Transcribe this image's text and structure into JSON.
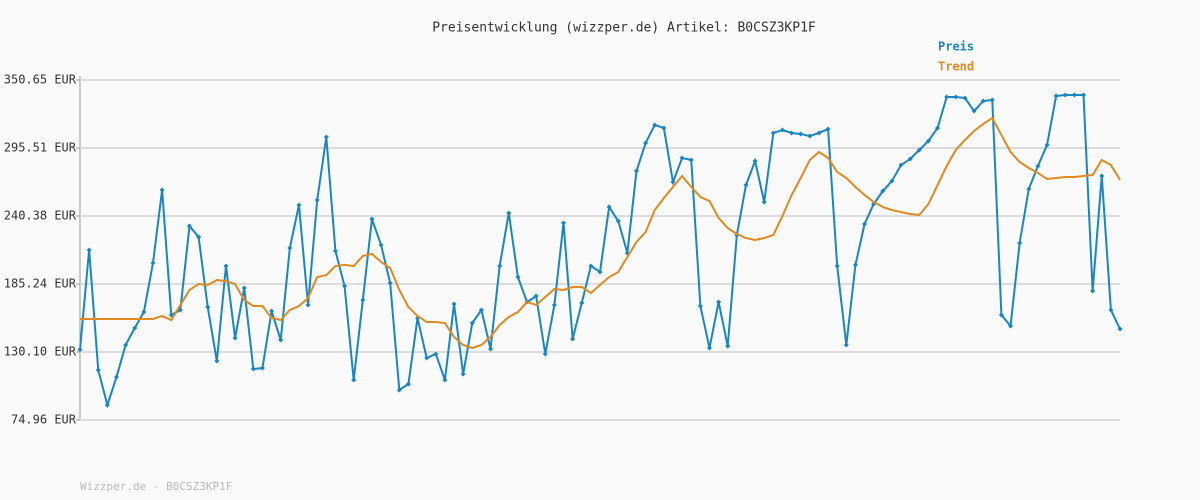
{
  "chart_data": {
    "type": "line",
    "title": "Preisentwicklung (wizzper.de) Artikel: B0CSZ3KP1F",
    "footer": "Wizzper.de - B0CSZ3KP1F",
    "categories": [
      null,
      null,
      null,
      null,
      null,
      null,
      null,
      null,
      null,
      null,
      null,
      null,
      null,
      null,
      null,
      null,
      null,
      null,
      null,
      null,
      null,
      null,
      null,
      null,
      null,
      null,
      null,
      null,
      null,
      null,
      null,
      null,
      null,
      null,
      null,
      null,
      null,
      null,
      null,
      null,
      null,
      null,
      null,
      null,
      null,
      null,
      null,
      null,
      null,
      null,
      null,
      null,
      null,
      null,
      null,
      null,
      null,
      null,
      null,
      null,
      null,
      null,
      null,
      null,
      null,
      null,
      null,
      null,
      null,
      null,
      null,
      null,
      null,
      null,
      null,
      null,
      null,
      null,
      null,
      null,
      null,
      null,
      null,
      null,
      null,
      null,
      null,
      null,
      null,
      null,
      null,
      null,
      null,
      null,
      null,
      null,
      null,
      null,
      null,
      null,
      null,
      null,
      null,
      null,
      null,
      null,
      null,
      null,
      null,
      null,
      null,
      null,
      null,
      null,
      null
    ],
    "ylim": [
      74.96,
      350.65
    ],
    "yticks": [
      {
        "value": 74.96,
        "label": "74.96 EUR"
      },
      {
        "value": 130.1,
        "label": "130.10 EUR"
      },
      {
        "value": 185.24,
        "label": "185.24 EUR"
      },
      {
        "value": 240.38,
        "label": "240.38 EUR"
      },
      {
        "value": 295.51,
        "label": "295.51 EUR"
      },
      {
        "value": 350.65,
        "label": "350.65 EUR"
      }
    ],
    "grid": true,
    "series": [
      {
        "name": "Preis",
        "color": "#1a86c0",
        "markers": true,
        "values": [
          132,
          212.8,
          115.5,
          87.1,
          109.8,
          135.8,
          149.6,
          162.5,
          202.3,
          261.5,
          160.1,
          164.2,
          232.3,
          223.3,
          166.6,
          122.8,
          199.8,
          141.4,
          182.0,
          116.3,
          117.1,
          163.3,
          139.8,
          214.4,
          249.3,
          168.2,
          253.3,
          304.4,
          212.0,
          183.6,
          107.4,
          172.2,
          237.9,
          216.9,
          186.0,
          99.3,
          104.2,
          157.7,
          125.2,
          128.5,
          107.4,
          169.0,
          112.3,
          153.6,
          164.2,
          132.5,
          199.8,
          242.8,
          190.9,
          170.6,
          175.5,
          128.5,
          168.2,
          234.7,
          140.6,
          169.8,
          199.8,
          195.0,
          247.7,
          236.3,
          210.4,
          276.9,
          299.6,
          314.2,
          311.7,
          267.9,
          287.4,
          285.8,
          167.4,
          133.3,
          170.6,
          134.9,
          224.9,
          265.5,
          285.0,
          251.7,
          307.7,
          310.1,
          307.7,
          306.9,
          305.2,
          307.7,
          310.9,
          199.8,
          135.8,
          200.7,
          233.9,
          250.1,
          260.6,
          268.8,
          281.7,
          286.6,
          293.9,
          301.2,
          311.7,
          336.9,
          336.9,
          336.1,
          325.5,
          333.6,
          334.4,
          160.1,
          151.2,
          218.5,
          262.3,
          280.9,
          297.9,
          337.7,
          338.5,
          338.5,
          338.5,
          179.6,
          272.8,
          164.2,
          148.7
        ]
      },
      {
        "name": "Trend",
        "color": "#e08a20",
        "markers": false,
        "values": [
          156.9,
          156.9,
          156.9,
          156.9,
          156.9,
          156.9,
          156.9,
          156.9,
          156.9,
          159.3,
          156.0,
          168.2,
          180.4,
          185.2,
          184.4,
          188.5,
          187.6,
          185.2,
          172.2,
          167.4,
          167.4,
          157.7,
          156.0,
          164.2,
          167.4,
          173.9,
          190.9,
          192.5,
          199.8,
          200.7,
          199.8,
          207.9,
          209.6,
          203.1,
          198.2,
          180.4,
          166.6,
          159.3,
          154.4,
          154.4,
          153.6,
          142.3,
          135.8,
          133.3,
          135.8,
          142.3,
          152.0,
          158.5,
          162.5,
          170.6,
          168.2,
          174.7,
          181.2,
          180.4,
          182.8,
          182.8,
          177.9,
          184.4,
          190.9,
          195.0,
          207.1,
          219.3,
          227.4,
          245.2,
          255.0,
          263.9,
          272.8,
          263.9,
          255.8,
          252.5,
          238.8,
          230.6,
          225.8,
          222.5,
          220.9,
          222.5,
          225.0,
          240.4,
          257.4,
          271.2,
          285.8,
          292.3,
          287.4,
          276.0,
          271.2,
          263.9,
          257.4,
          251.7,
          247.7,
          245.2,
          243.6,
          242.0,
          241.2,
          250.1,
          265.5,
          280.9,
          293.9,
          302.0,
          309.3,
          315.0,
          319.8,
          306.1,
          292.3,
          284.2,
          279.3,
          275.3,
          270.4,
          271.2,
          272.0,
          272.0,
          272.8,
          273.6,
          285.8,
          281.7,
          269.6
        ]
      }
    ]
  }
}
